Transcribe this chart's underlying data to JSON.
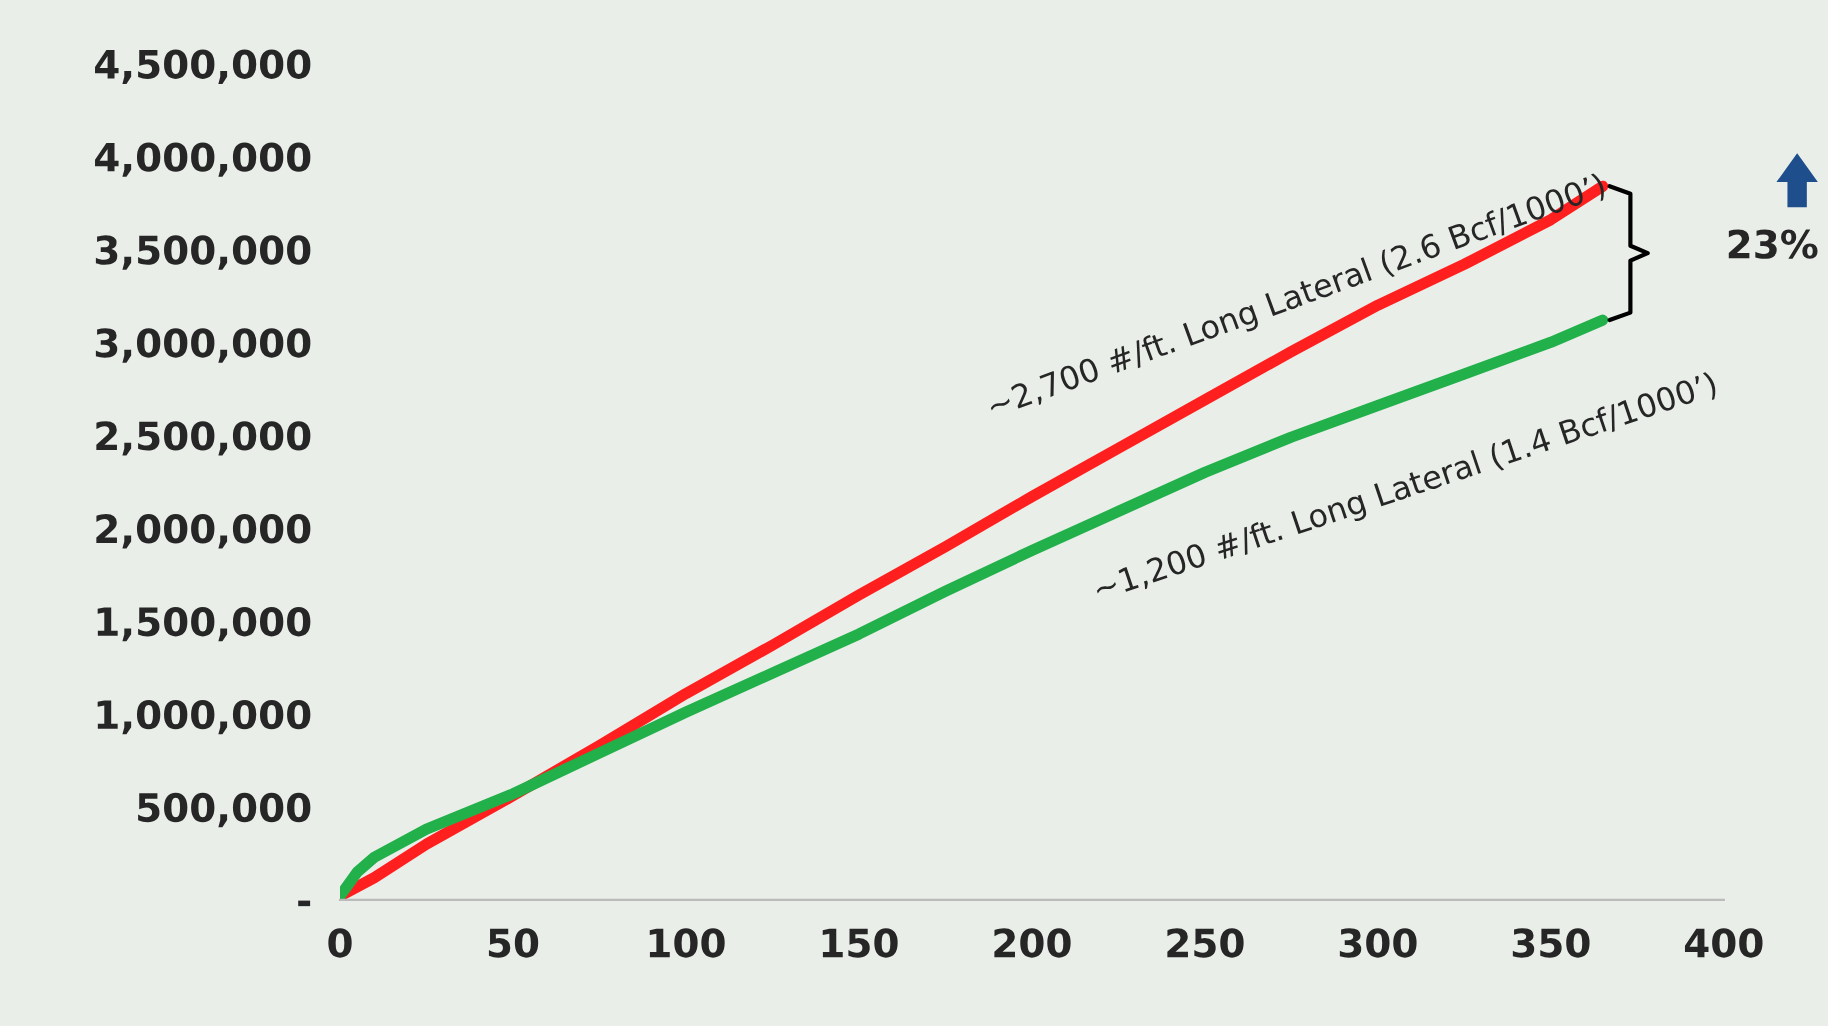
{
  "chart_data": {
    "type": "line",
    "series": [
      {
        "color": "#ff1f1f",
        "x": [
          0,
          10,
          25,
          50,
          75,
          100,
          125,
          150,
          175,
          200,
          225,
          250,
          275,
          300,
          325,
          350,
          365
        ],
        "values": [
          20000,
          120000,
          300000,
          560000,
          830000,
          1110000,
          1370000,
          1640000,
          1900000,
          2170000,
          2430000,
          2690000,
          2950000,
          3200000,
          3420000,
          3660000,
          3840000
        ]
      },
      {
        "color": "#22b04a",
        "x": [
          0,
          5,
          10,
          25,
          50,
          75,
          100,
          125,
          150,
          175,
          200,
          225,
          250,
          275,
          300,
          325,
          350,
          365
        ],
        "values": [
          20000,
          150000,
          230000,
          380000,
          570000,
          790000,
          1010000,
          1220000,
          1430000,
          1660000,
          1880000,
          2090000,
          2300000,
          2490000,
          2660000,
          2830000,
          3000000,
          3120000
        ]
      }
    ],
    "xlim": [
      0,
      400
    ],
    "xticks": [
      0,
      50,
      100,
      150,
      200,
      250,
      300,
      350,
      400
    ],
    "ylim": [
      0,
      4500000
    ],
    "yticks": [
      {
        "value": 0,
        "label": "-"
      },
      {
        "value": 500000,
        "label": "500,000"
      },
      {
        "value": 1000000,
        "label": "1,000,000"
      },
      {
        "value": 1500000,
        "label": "1,500,000"
      },
      {
        "value": 2000000,
        "label": "2,000,000"
      },
      {
        "value": 2500000,
        "label": "2,500,000"
      },
      {
        "value": 3000000,
        "label": "3,000,000"
      },
      {
        "value": 3500000,
        "label": "3,500,000"
      },
      {
        "value": 4000000,
        "label": "4,000,000"
      },
      {
        "value": 4500000,
        "label": "4,500,000"
      }
    ],
    "grid": false,
    "legend": false,
    "marker": "none",
    "line_style": "solid",
    "annotations": [
      {
        "text": "~2,700 #/ft. Long Lateral (2.6 Bcf/1000’)",
        "x": 283,
        "y": 3030000
      },
      {
        "text": "~1,200 #/ft. Long Lateral (1.4 Bcf/1000’)",
        "x": 300,
        "y": 2660000
      },
      "23%"
    ]
  }
}
